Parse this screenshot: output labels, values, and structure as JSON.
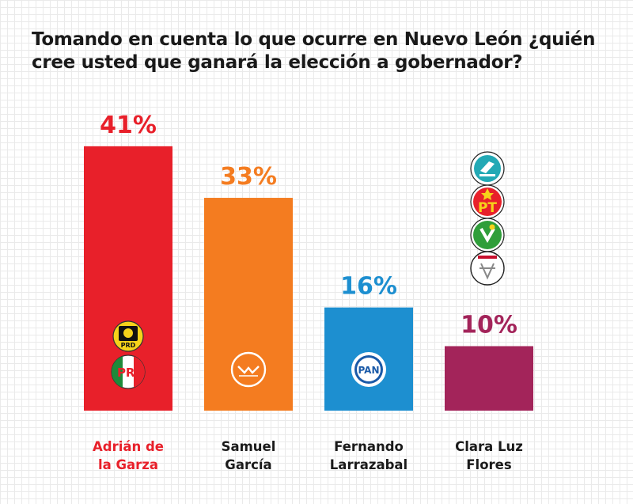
{
  "title_lines": [
    "Tomando en cuenta lo que ocurre en Nuevo León ¿quién",
    "cree usted que ganará la elección a gobernador?"
  ],
  "chart_data": {
    "type": "bar",
    "title": "Tomando en cuenta lo que ocurre en Nuevo León ¿quién cree usted que ganará la elección a gobernador?",
    "categories": [
      "Adrián de la Garza",
      "Samuel García",
      "Fernando Larrazabal",
      "Clara Luz Flores"
    ],
    "category_lines": [
      [
        "Adrián de",
        "la Garza"
      ],
      [
        "Samuel",
        "García"
      ],
      [
        "Fernando",
        "Larrazabal"
      ],
      [
        "Clara Luz",
        "Flores"
      ]
    ],
    "values": [
      41,
      33,
      16,
      10
    ],
    "value_labels": [
      "41%",
      "33%",
      "16%",
      "10%"
    ],
    "unit": "%",
    "ylim": [
      0,
      45
    ],
    "grid": false,
    "colors": [
      "#e8202a",
      "#f47c20",
      "#1d8fd0",
      "#a3245a"
    ],
    "label_colors": [
      "#e8202a",
      "#1a1a1a",
      "#1a1a1a",
      "#1a1a1a"
    ],
    "party_logos": [
      [
        "prd-logo-icon",
        "pri-logo-icon"
      ],
      [
        "movimiento-ciudadano-logo-icon"
      ],
      [
        "pan-logo-icon"
      ],
      [
        "morena-logo-icon",
        "pt-logo-icon",
        "pvem-logo-icon",
        "nueva-alianza-logo-icon"
      ]
    ],
    "logo_texts": {
      "prd": "PRD",
      "pri": "PRI",
      "pan": "PAN",
      "pt": "PT"
    }
  }
}
